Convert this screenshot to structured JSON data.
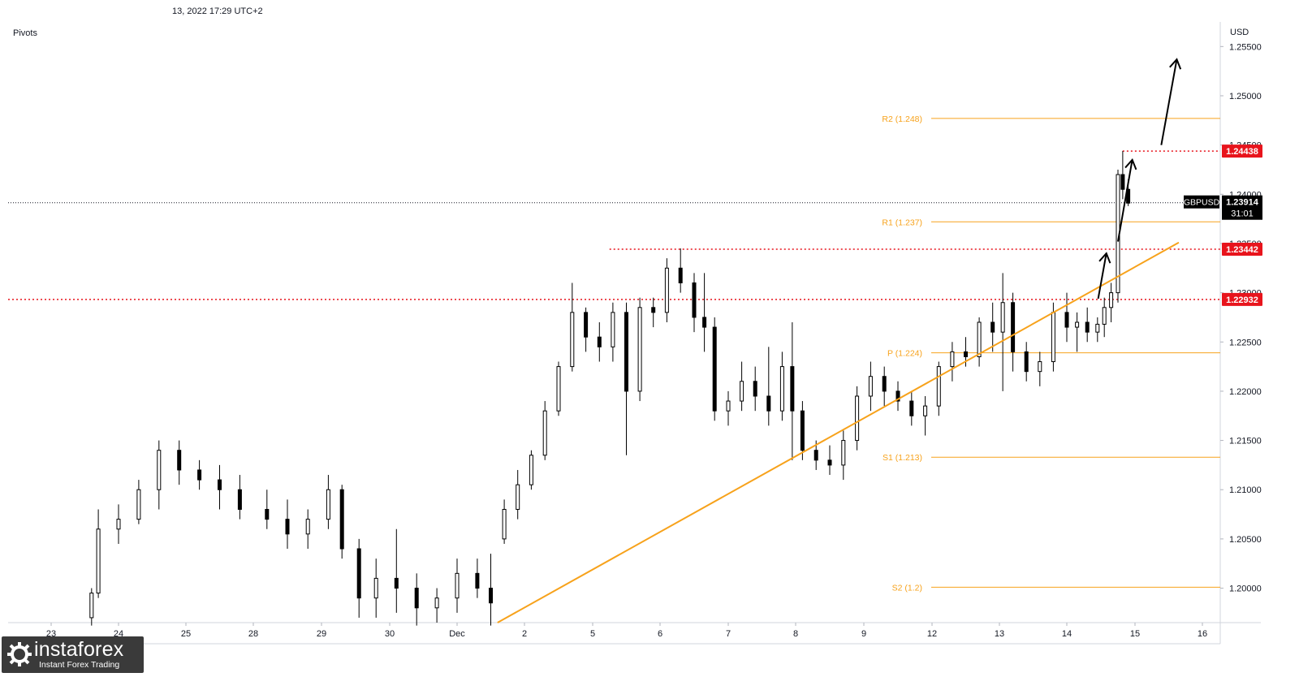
{
  "header": {
    "timestamp": "13, 2022 17:29 UTC+2",
    "indicator": "Pivots",
    "currency": "USD"
  },
  "logo": {
    "brand": "instaforex",
    "tagline": "Instant Forex Trading"
  },
  "chart_data": {
    "type": "candlestick",
    "symbol": "GBPUSD",
    "last_price": "1.23914",
    "countdown": "31:01",
    "ylim": [
      1.1965,
      1.2575
    ],
    "y_ticks": [
      "1.25500",
      "1.25000",
      "1.24500",
      "1.24000",
      "1.23500",
      "1.23000",
      "1.22500",
      "1.22000",
      "1.21500",
      "1.21000",
      "1.20500",
      "1.20000"
    ],
    "x_ticks": [
      {
        "label": "23",
        "i": 0
      },
      {
        "label": "24",
        "i": 1
      },
      {
        "label": "25",
        "i": 2
      },
      {
        "label": "28",
        "i": 3
      },
      {
        "label": "29",
        "i": 4
      },
      {
        "label": "30",
        "i": 5
      },
      {
        "label": "Dec",
        "i": 6
      },
      {
        "label": "2",
        "i": 7
      },
      {
        "label": "5",
        "i": 8
      },
      {
        "label": "6",
        "i": 9
      },
      {
        "label": "7",
        "i": 10
      },
      {
        "label": "8",
        "i": 11
      },
      {
        "label": "9",
        "i": 12
      },
      {
        "label": "12",
        "i": 13
      },
      {
        "label": "13",
        "i": 14
      },
      {
        "label": "14",
        "i": 15
      },
      {
        "label": "15",
        "i": 16
      },
      {
        "label": "16",
        "i": 17
      }
    ],
    "pivots": [
      {
        "label": "R2 (1.248)",
        "value": 1.2477
      },
      {
        "label": "R1 (1.237)",
        "value": 1.2372
      },
      {
        "label": "P (1.224)",
        "value": 1.2239
      },
      {
        "label": "S1 (1.213)",
        "value": 1.2133
      },
      {
        "label": "S2 (1.2)",
        "value": 1.2001
      }
    ],
    "levels": [
      {
        "label": "1.24438",
        "value": 1.24438
      },
      {
        "label": "1.23442",
        "value": 1.23442
      },
      {
        "label": "1.22932",
        "value": 1.22932
      }
    ],
    "trendline": {
      "from": {
        "day": 6.6,
        "price": 1.1965
      },
      "to": {
        "day": 16.65,
        "price": 1.2351
      }
    },
    "arrows": [
      {
        "from": {
          "day": 15.46,
          "price": 1.2294
        },
        "to": {
          "day": 15.58,
          "price": 1.234
        }
      },
      {
        "from": {
          "day": 15.75,
          "price": 1.2352
        },
        "to": {
          "day": 15.96,
          "price": 1.2435
        }
      },
      {
        "from": {
          "day": 16.39,
          "price": 1.245
        },
        "to": {
          "day": 16.62,
          "price": 1.2537
        }
      }
    ],
    "series": [
      {
        "day": 0.6,
        "o": 1.197,
        "h": 1.2,
        "l": 1.1962,
        "c": 1.1995
      },
      {
        "day": 0.7,
        "o": 1.1995,
        "h": 1.208,
        "l": 1.199,
        "c": 1.206
      },
      {
        "day": 1.0,
        "o": 1.206,
        "h": 1.2085,
        "l": 1.2045,
        "c": 1.207
      },
      {
        "day": 1.3,
        "o": 1.207,
        "h": 1.211,
        "l": 1.2065,
        "c": 1.21
      },
      {
        "day": 1.6,
        "o": 1.21,
        "h": 1.215,
        "l": 1.208,
        "c": 1.214
      },
      {
        "day": 1.9,
        "o": 1.214,
        "h": 1.215,
        "l": 1.2105,
        "c": 1.212
      },
      {
        "day": 2.2,
        "o": 1.212,
        "h": 1.213,
        "l": 1.21,
        "c": 1.211
      },
      {
        "day": 2.5,
        "o": 1.211,
        "h": 1.2125,
        "l": 1.208,
        "c": 1.21
      },
      {
        "day": 2.8,
        "o": 1.21,
        "h": 1.2115,
        "l": 1.207,
        "c": 1.208
      },
      {
        "day": 3.2,
        "o": 1.208,
        "h": 1.21,
        "l": 1.206,
        "c": 1.207
      },
      {
        "day": 3.5,
        "o": 1.207,
        "h": 1.209,
        "l": 1.204,
        "c": 1.2055
      },
      {
        "day": 3.8,
        "o": 1.2055,
        "h": 1.208,
        "l": 1.204,
        "c": 1.207
      },
      {
        "day": 4.1,
        "o": 1.207,
        "h": 1.2115,
        "l": 1.206,
        "c": 1.21
      },
      {
        "day": 4.3,
        "o": 1.21,
        "h": 1.2105,
        "l": 1.203,
        "c": 1.204
      },
      {
        "day": 4.55,
        "o": 1.204,
        "h": 1.205,
        "l": 1.197,
        "c": 1.199
      },
      {
        "day": 4.8,
        "o": 1.199,
        "h": 1.203,
        "l": 1.197,
        "c": 1.201
      },
      {
        "day": 5.1,
        "o": 1.201,
        "h": 1.206,
        "l": 1.1975,
        "c": 1.2
      },
      {
        "day": 5.4,
        "o": 1.2,
        "h": 1.2015,
        "l": 1.1962,
        "c": 1.198
      },
      {
        "day": 5.7,
        "o": 1.198,
        "h": 1.2,
        "l": 1.1965,
        "c": 1.199
      },
      {
        "day": 6.0,
        "o": 1.199,
        "h": 1.203,
        "l": 1.1975,
        "c": 1.2015
      },
      {
        "day": 6.3,
        "o": 1.2015,
        "h": 1.203,
        "l": 1.199,
        "c": 1.2
      },
      {
        "day": 6.5,
        "o": 1.2,
        "h": 1.2035,
        "l": 1.1962,
        "c": 1.1985
      },
      {
        "day": 6.7,
        "o": 1.205,
        "h": 1.209,
        "l": 1.2045,
        "c": 1.208
      },
      {
        "day": 6.9,
        "o": 1.208,
        "h": 1.212,
        "l": 1.207,
        "c": 1.2105
      },
      {
        "day": 7.1,
        "o": 1.2105,
        "h": 1.214,
        "l": 1.21,
        "c": 1.2135
      },
      {
        "day": 7.3,
        "o": 1.2135,
        "h": 1.219,
        "l": 1.213,
        "c": 1.218
      },
      {
        "day": 7.5,
        "o": 1.218,
        "h": 1.223,
        "l": 1.2175,
        "c": 1.2225
      },
      {
        "day": 7.7,
        "o": 1.2225,
        "h": 1.231,
        "l": 1.222,
        "c": 1.228
      },
      {
        "day": 7.9,
        "o": 1.228,
        "h": 1.2285,
        "l": 1.224,
        "c": 1.2255
      },
      {
        "day": 8.1,
        "o": 1.2255,
        "h": 1.227,
        "l": 1.223,
        "c": 1.2245
      },
      {
        "day": 8.3,
        "o": 1.2245,
        "h": 1.229,
        "l": 1.223,
        "c": 1.228
      },
      {
        "day": 8.5,
        "o": 1.228,
        "h": 1.229,
        "l": 1.2135,
        "c": 1.22
      },
      {
        "day": 8.7,
        "o": 1.22,
        "h": 1.2295,
        "l": 1.219,
        "c": 1.2285
      },
      {
        "day": 8.9,
        "o": 1.2285,
        "h": 1.2295,
        "l": 1.2265,
        "c": 1.228
      },
      {
        "day": 9.1,
        "o": 1.228,
        "h": 1.2335,
        "l": 1.227,
        "c": 1.2325
      },
      {
        "day": 9.3,
        "o": 1.2325,
        "h": 1.2345,
        "l": 1.23,
        "c": 1.231
      },
      {
        "day": 9.5,
        "o": 1.231,
        "h": 1.232,
        "l": 1.226,
        "c": 1.2275
      },
      {
        "day": 9.65,
        "o": 1.2275,
        "h": 1.232,
        "l": 1.224,
        "c": 1.2265
      },
      {
        "day": 9.8,
        "o": 1.2265,
        "h": 1.2275,
        "l": 1.217,
        "c": 1.218
      },
      {
        "day": 10.0,
        "o": 1.218,
        "h": 1.22,
        "l": 1.2165,
        "c": 1.219
      },
      {
        "day": 10.2,
        "o": 1.219,
        "h": 1.223,
        "l": 1.218,
        "c": 1.221
      },
      {
        "day": 10.4,
        "o": 1.221,
        "h": 1.2225,
        "l": 1.218,
        "c": 1.2195
      },
      {
        "day": 10.6,
        "o": 1.2195,
        "h": 1.2245,
        "l": 1.2165,
        "c": 1.218
      },
      {
        "day": 10.8,
        "o": 1.218,
        "h": 1.224,
        "l": 1.217,
        "c": 1.2225
      },
      {
        "day": 10.95,
        "o": 1.2225,
        "h": 1.227,
        "l": 1.213,
        "c": 1.218
      },
      {
        "day": 11.1,
        "o": 1.218,
        "h": 1.219,
        "l": 1.213,
        "c": 1.214
      },
      {
        "day": 11.3,
        "o": 1.214,
        "h": 1.215,
        "l": 1.212,
        "c": 1.213
      },
      {
        "day": 11.5,
        "o": 1.213,
        "h": 1.2145,
        "l": 1.2115,
        "c": 1.2125
      },
      {
        "day": 11.7,
        "o": 1.2125,
        "h": 1.216,
        "l": 1.211,
        "c": 1.215
      },
      {
        "day": 11.9,
        "o": 1.215,
        "h": 1.2205,
        "l": 1.214,
        "c": 1.2195
      },
      {
        "day": 12.1,
        "o": 1.2195,
        "h": 1.223,
        "l": 1.218,
        "c": 1.2215
      },
      {
        "day": 12.3,
        "o": 1.2215,
        "h": 1.2225,
        "l": 1.2185,
        "c": 1.22
      },
      {
        "day": 12.5,
        "o": 1.22,
        "h": 1.221,
        "l": 1.218,
        "c": 1.219
      },
      {
        "day": 12.7,
        "o": 1.219,
        "h": 1.22,
        "l": 1.2165,
        "c": 1.2175
      },
      {
        "day": 12.9,
        "o": 1.2175,
        "h": 1.2195,
        "l": 1.2155,
        "c": 1.2185
      },
      {
        "day": 13.1,
        "o": 1.2185,
        "h": 1.223,
        "l": 1.2175,
        "c": 1.2225
      },
      {
        "day": 13.3,
        "o": 1.2225,
        "h": 1.225,
        "l": 1.221,
        "c": 1.224
      },
      {
        "day": 13.5,
        "o": 1.224,
        "h": 1.2255,
        "l": 1.2225,
        "c": 1.2235
      },
      {
        "day": 13.7,
        "o": 1.2235,
        "h": 1.2275,
        "l": 1.2225,
        "c": 1.227
      },
      {
        "day": 13.9,
        "o": 1.227,
        "h": 1.229,
        "l": 1.224,
        "c": 1.226
      },
      {
        "day": 14.05,
        "o": 1.226,
        "h": 1.232,
        "l": 1.22,
        "c": 1.229
      },
      {
        "day": 14.2,
        "o": 1.229,
        "h": 1.23,
        "l": 1.222,
        "c": 1.224
      },
      {
        "day": 14.4,
        "o": 1.224,
        "h": 1.225,
        "l": 1.221,
        "c": 1.222
      },
      {
        "day": 14.6,
        "o": 1.222,
        "h": 1.224,
        "l": 1.2205,
        "c": 1.223
      },
      {
        "day": 14.8,
        "o": 1.223,
        "h": 1.229,
        "l": 1.222,
        "c": 1.228
      },
      {
        "day": 15.0,
        "o": 1.228,
        "h": 1.23,
        "l": 1.225,
        "c": 1.2265
      },
      {
        "day": 15.15,
        "o": 1.2265,
        "h": 1.228,
        "l": 1.224,
        "c": 1.227
      },
      {
        "day": 15.3,
        "o": 1.227,
        "h": 1.2285,
        "l": 1.225,
        "c": 1.226
      },
      {
        "day": 15.45,
        "o": 1.226,
        "h": 1.2275,
        "l": 1.225,
        "c": 1.2268
      },
      {
        "day": 15.55,
        "o": 1.2268,
        "h": 1.2295,
        "l": 1.2255,
        "c": 1.2285
      },
      {
        "day": 15.65,
        "o": 1.2285,
        "h": 1.231,
        "l": 1.227,
        "c": 1.23
      },
      {
        "day": 15.75,
        "o": 1.23,
        "h": 1.2425,
        "l": 1.229,
        "c": 1.242
      },
      {
        "day": 15.82,
        "o": 1.242,
        "h": 1.2444,
        "l": 1.2395,
        "c": 1.2405
      },
      {
        "day": 15.9,
        "o": 1.2405,
        "h": 1.2415,
        "l": 1.2388,
        "c": 1.2391
      }
    ]
  },
  "colors": {
    "background": "#ffffff",
    "candle_up": "#000000",
    "candle_down": "#000000",
    "pivot": "#f7a21b",
    "level": "#e8141c",
    "trendline": "#f7a21b",
    "arrow": "#000000",
    "price_label_bg": "#000000"
  }
}
